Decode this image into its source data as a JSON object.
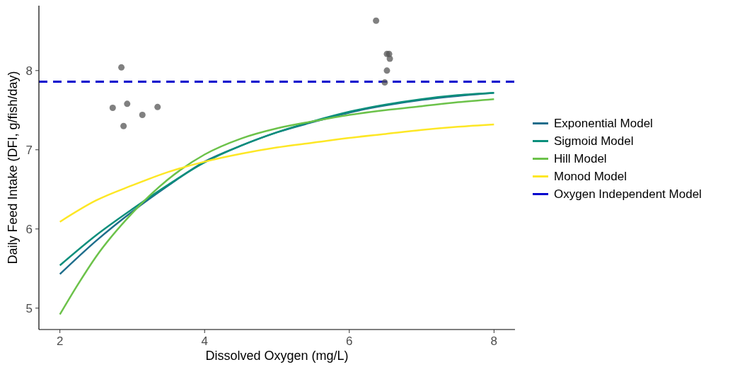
{
  "chart_data": {
    "type": "line",
    "xlabel": "Dissolved Oxygen (mg/L)",
    "ylabel": "Daily Feed Intake (DFI, g/fish/day)",
    "xlim": [
      1.71,
      8.29
    ],
    "ylim": [
      4.73,
      8.82
    ],
    "xticks": [
      2,
      4,
      6,
      8
    ],
    "yticks": [
      5,
      6,
      7,
      8
    ],
    "grid": false,
    "legend": "right",
    "line_style": "solid",
    "series": [
      {
        "name": "Exponential Model",
        "color": "#1f6e8c",
        "x": [
          2,
          2.5,
          3,
          3.5,
          4,
          4.5,
          5,
          5.5,
          6,
          6.5,
          7,
          7.5,
          8
        ],
        "values": [
          5.43,
          5.85,
          6.22,
          6.55,
          6.85,
          7.05,
          7.22,
          7.35,
          7.47,
          7.56,
          7.63,
          7.68,
          7.72
        ]
      },
      {
        "name": "Sigmoid Model",
        "color": "#0b8f7c",
        "x": [
          2,
          2.5,
          3,
          3.5,
          4,
          4.5,
          5,
          5.5,
          6,
          6.5,
          7,
          7.5,
          8
        ],
        "values": [
          5.54,
          5.92,
          6.25,
          6.56,
          6.84,
          7.05,
          7.22,
          7.36,
          7.48,
          7.57,
          7.64,
          7.69,
          7.72
        ]
      },
      {
        "name": "Hill Model",
        "color": "#6cc24a",
        "x": [
          2,
          2.25,
          2.5,
          3,
          3.5,
          4,
          4.5,
          5,
          5.5,
          6,
          6.5,
          7,
          7.5,
          8
        ],
        "values": [
          4.92,
          5.3,
          5.65,
          6.2,
          6.63,
          6.94,
          7.14,
          7.27,
          7.36,
          7.44,
          7.5,
          7.55,
          7.6,
          7.64
        ]
      },
      {
        "name": "Monod Model",
        "color": "#fde725",
        "x": [
          2,
          2.5,
          3,
          3.5,
          4,
          4.5,
          5,
          5.5,
          6,
          6.5,
          7,
          7.5,
          8
        ],
        "values": [
          6.09,
          6.36,
          6.55,
          6.72,
          6.85,
          6.95,
          7.03,
          7.09,
          7.15,
          7.2,
          7.25,
          7.29,
          7.32
        ]
      },
      {
        "name": "Oxygen Independent Model",
        "color": "#0000cd",
        "line_style": "dashed",
        "x": [
          1.71,
          8.29
        ],
        "values": [
          7.86,
          7.86
        ]
      },
      {
        "type": "scatter",
        "color": "#555555",
        "marker": "circle",
        "x": [
          2.73,
          2.85,
          2.88,
          2.93,
          3.14,
          3.35,
          6.37,
          6.52,
          6.55,
          6.56,
          6.52,
          6.49
        ],
        "values": [
          7.53,
          8.04,
          7.3,
          7.58,
          7.44,
          7.54,
          8.63,
          8.21,
          8.21,
          8.15,
          8.0,
          7.85
        ]
      }
    ]
  }
}
